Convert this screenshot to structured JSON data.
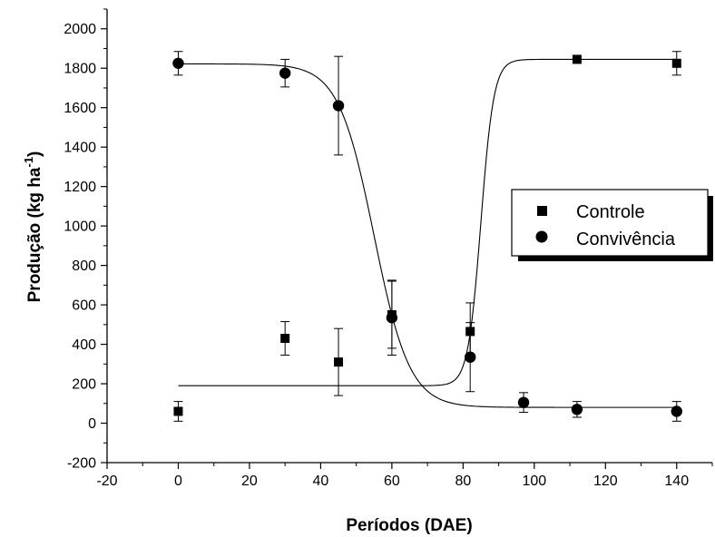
{
  "chart_data": {
    "type": "scatter",
    "xlabel": "Períodos (DAE)",
    "ylabel": "Produção (kg ha",
    "ylabel_sup": "-1",
    "ylabel_end": ")",
    "xlim": [
      -20,
      150
    ],
    "ylim": [
      -200,
      2100
    ],
    "xticks": [
      -20,
      0,
      20,
      40,
      60,
      80,
      100,
      120,
      140
    ],
    "yticks": [
      -200,
      0,
      200,
      400,
      600,
      800,
      1000,
      1200,
      1400,
      1600,
      1800,
      2000
    ],
    "grid": false,
    "legend_position": "right",
    "series": [
      {
        "name": "Controle",
        "marker": "square",
        "x": [
          0,
          30,
          45,
          60,
          82,
          112,
          140
        ],
        "y": [
          60,
          430,
          310,
          550,
          465,
          1845,
          1825
        ],
        "err": [
          50,
          85,
          170,
          170,
          145,
          0,
          60
        ],
        "fit": {
          "lower": 190,
          "upper": 1845,
          "x0": 85,
          "k": 0.55
        }
      },
      {
        "name": "Convivência",
        "marker": "circle",
        "x": [
          0,
          30,
          45,
          60,
          82,
          97,
          112,
          140
        ],
        "y": [
          1825,
          1775,
          1610,
          535,
          335,
          105,
          70,
          60
        ],
        "err": [
          60,
          70,
          250,
          190,
          175,
          50,
          40,
          50
        ],
        "fit": {
          "lower": 80,
          "upper": 1822,
          "x0": 55,
          "k": -0.2
        }
      }
    ]
  }
}
